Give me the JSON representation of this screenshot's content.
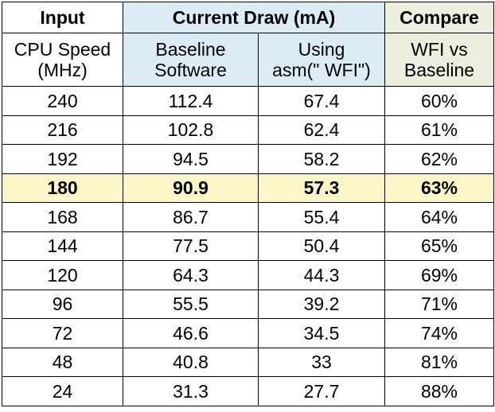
{
  "colors": {
    "input_bg": "#ffffff",
    "current_draw_bg": "#dcecf5",
    "compare_bg": "#ebf0de",
    "highlight_bg": "#fdf7c8",
    "border": "#000000"
  },
  "headers": {
    "input": "Input",
    "current_draw": "Current Draw (mA)",
    "compare": "Compare"
  },
  "subheaders": {
    "cpu_speed_line1": "CPU Speed",
    "cpu_speed_line2": "(MHz)",
    "baseline_line1": "Baseline",
    "baseline_line2": "Software",
    "wfi_line1": "Using",
    "wfi_line2": "asm(\" WFI\")",
    "compare_line1": "WFI vs",
    "compare_line2": "Baseline"
  },
  "highlighted_row_index": 3,
  "rows": [
    {
      "cpu": "240",
      "baseline": "112.4",
      "wfi": "67.4",
      "compare": "60%"
    },
    {
      "cpu": "216",
      "baseline": "102.8",
      "wfi": "62.4",
      "compare": "61%"
    },
    {
      "cpu": "192",
      "baseline": "94.5",
      "wfi": "58.2",
      "compare": "62%"
    },
    {
      "cpu": "180",
      "baseline": "90.9",
      "wfi": "57.3",
      "compare": "63%"
    },
    {
      "cpu": "168",
      "baseline": "86.7",
      "wfi": "55.4",
      "compare": "64%"
    },
    {
      "cpu": "144",
      "baseline": "77.5",
      "wfi": "50.4",
      "compare": "65%"
    },
    {
      "cpu": "120",
      "baseline": "64.3",
      "wfi": "44.3",
      "compare": "69%"
    },
    {
      "cpu": "96",
      "baseline": "55.5",
      "wfi": "39.2",
      "compare": "71%"
    },
    {
      "cpu": "72",
      "baseline": "46.6",
      "wfi": "34.5",
      "compare": "74%"
    },
    {
      "cpu": "48",
      "baseline": "40.8",
      "wfi": "33",
      "compare": "81%"
    },
    {
      "cpu": "24",
      "baseline": "31.3",
      "wfi": "27.7",
      "compare": "88%"
    }
  ]
}
